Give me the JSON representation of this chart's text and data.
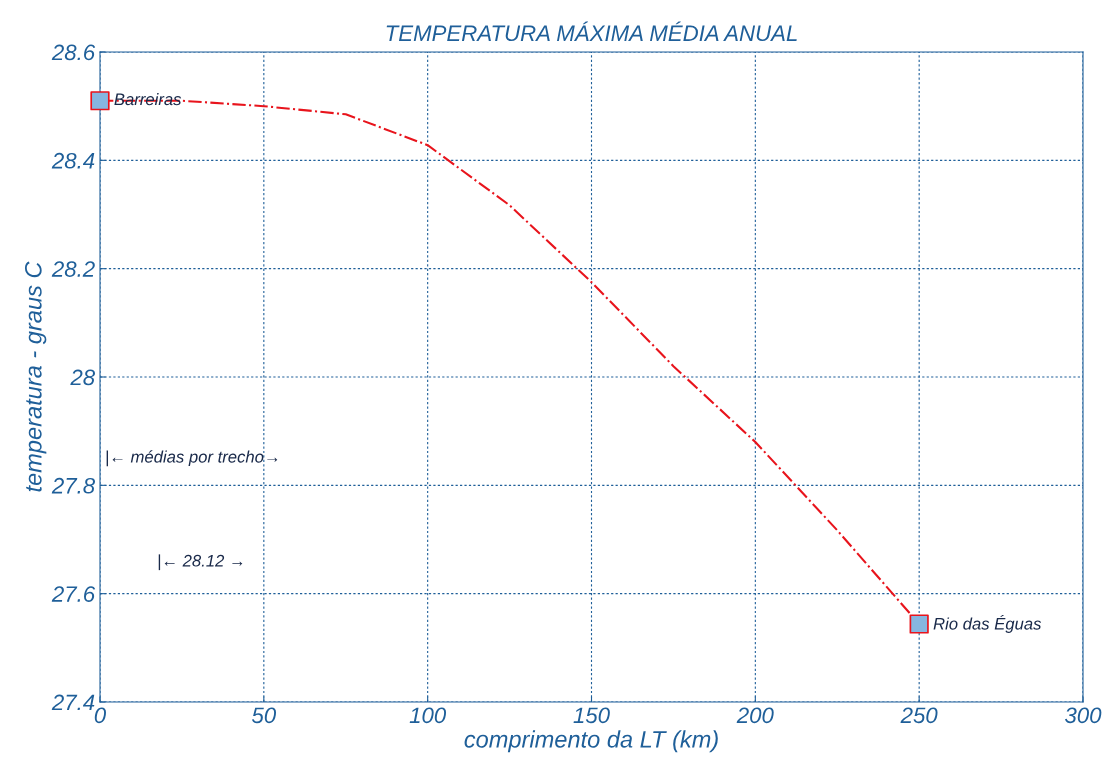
{
  "chart_data": {
    "type": "line",
    "title": "TEMPERATURA MÁXIMA MÉDIA ANUAL",
    "xlabel": "comprimento da LT (km)",
    "ylabel": "temperatura - graus C",
    "series": [
      {
        "color": "#e8141c",
        "line_style": "dashed",
        "marker": "none",
        "x": [
          0,
          25,
          50,
          75,
          100,
          125,
          150,
          175,
          200,
          225,
          250
        ],
        "values": [
          28.51,
          28.51,
          28.5,
          28.485,
          28.428,
          28.317,
          28.175,
          28.02,
          27.88,
          27.717,
          27.544
        ]
      },
      {
        "type": "scatter",
        "color": "#86b6e0",
        "marker": "square",
        "x": [
          0,
          250
        ],
        "values": [
          28.51,
          27.544
        ]
      }
    ],
    "annotations": [
      {
        "text": "Barreiras",
        "x": 0,
        "y": 28.51
      },
      {
        "text": "Rio das Éguas",
        "x": 250,
        "y": 27.544
      },
      "|← médias por trecho→",
      "|← 28.12 →"
    ],
    "xlim": [
      0,
      300
    ],
    "xticks": [
      0,
      50,
      100,
      150,
      200,
      250,
      300
    ],
    "ylim": [
      27.4,
      28.6
    ],
    "yticks": [
      27.4,
      27.6,
      27.8,
      28,
      28.2,
      28.4,
      28.6
    ],
    "grid": true
  }
}
